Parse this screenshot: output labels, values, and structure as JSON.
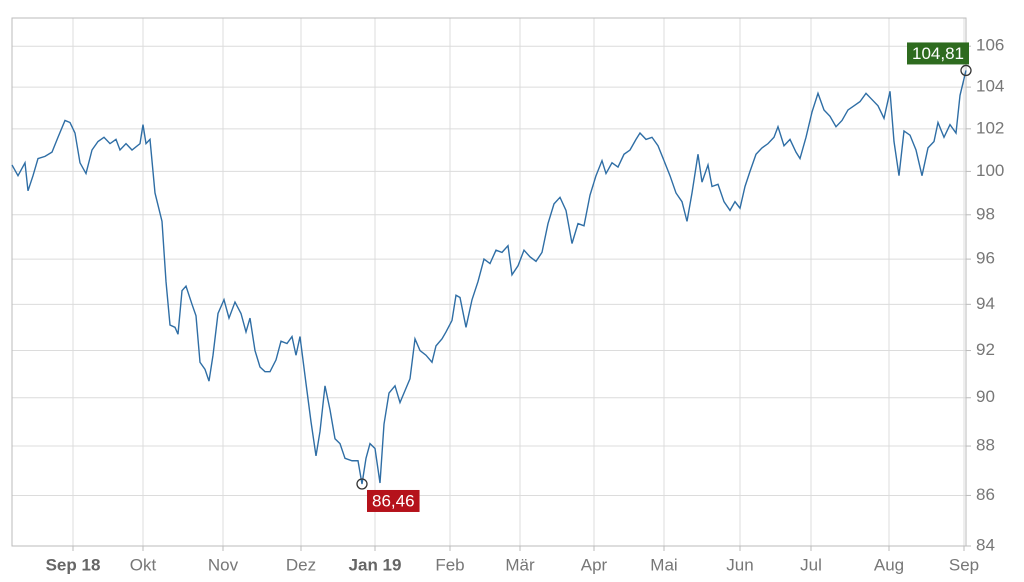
{
  "chart_data": {
    "type": "line",
    "color": "#2f6ea5",
    "log_y": true,
    "grid": true,
    "xlim": [
      -61,
      893
    ],
    "ylim": [
      84,
      107.4
    ],
    "xticks": [
      {
        "value": 0,
        "label": "Sep 18",
        "bold": true
      },
      {
        "value": 70,
        "label": "Okt"
      },
      {
        "value": 150,
        "label": "Nov"
      },
      {
        "value": 228,
        "label": "Dez"
      },
      {
        "value": 302,
        "label": "Jan 19",
        "bold": true
      },
      {
        "value": 377,
        "label": "Feb"
      },
      {
        "value": 447,
        "label": "Mär"
      },
      {
        "value": 521,
        "label": "Apr"
      },
      {
        "value": 591,
        "label": "Mai"
      },
      {
        "value": 667,
        "label": "Jun"
      },
      {
        "value": 738,
        "label": "Jul"
      },
      {
        "value": 816,
        "label": "Aug"
      },
      {
        "value": 891,
        "label": "Sep"
      }
    ],
    "yticks": [
      84,
      86,
      88,
      90,
      92,
      94,
      96,
      98,
      100,
      102,
      104,
      106
    ],
    "x": [
      -61,
      -55,
      -48,
      -45,
      -40,
      -35,
      -28,
      -21,
      -15,
      -8,
      -3,
      2,
      7,
      13,
      19,
      25,
      31,
      37,
      43,
      47,
      53,
      59,
      67,
      70,
      73,
      77,
      82,
      89,
      93,
      97,
      102,
      105,
      109,
      113,
      119,
      123,
      127,
      132,
      136,
      140,
      145,
      151,
      156,
      162,
      168,
      173,
      177,
      182,
      187,
      192,
      197,
      203,
      208,
      214,
      219,
      223,
      227,
      233,
      238,
      243,
      247,
      252,
      257,
      262,
      267,
      272,
      279,
      285,
      289,
      293,
      297,
      302,
      307,
      311,
      316,
      322,
      327,
      332,
      337,
      342,
      347,
      353,
      359,
      363,
      369,
      373,
      379,
      383,
      387,
      393,
      399,
      405,
      411,
      417,
      423,
      429,
      435,
      439,
      445,
      451,
      457,
      463,
      469,
      475,
      481,
      487,
      493,
      499,
      505,
      511,
      517,
      523,
      529,
      533,
      539,
      545,
      551,
      557,
      563,
      567,
      573,
      579,
      585,
      591,
      597,
      603,
      609,
      614,
      619,
      625,
      629,
      635,
      639,
      645,
      651,
      657,
      662,
      667,
      672,
      677,
      683,
      689,
      695,
      701,
      705,
      711,
      717,
      723,
      727,
      733,
      739,
      745,
      751,
      757,
      763,
      769,
      775,
      781,
      787,
      793,
      799,
      805,
      811,
      817,
      821,
      826,
      831,
      837,
      843,
      849,
      855,
      861,
      865,
      871,
      877,
      883,
      887,
      893
    ],
    "values": [
      100.3,
      99.8,
      100.4,
      99.1,
      99.8,
      100.6,
      100.7,
      100.9,
      101.6,
      102.4,
      102.3,
      101.8,
      100.4,
      99.9,
      101.0,
      101.4,
      101.6,
      101.3,
      101.5,
      101.0,
      101.3,
      101.0,
      101.3,
      102.2,
      101.3,
      101.5,
      99.0,
      97.7,
      95.0,
      93.1,
      93.0,
      92.7,
      94.6,
      94.8,
      94.0,
      93.5,
      91.5,
      91.2,
      90.7,
      91.8,
      93.6,
      94.2,
      93.4,
      94.1,
      93.6,
      92.8,
      93.4,
      92.0,
      91.3,
      91.1,
      91.1,
      91.6,
      92.4,
      92.3,
      92.6,
      91.8,
      92.6,
      90.6,
      89.0,
      87.6,
      88.6,
      90.5,
      89.5,
      88.3,
      88.1,
      87.5,
      87.4,
      87.4,
      86.46,
      87.5,
      88.1,
      87.9,
      86.5,
      88.9,
      90.2,
      90.5,
      89.8,
      90.3,
      90.8,
      92.5,
      92.0,
      91.8,
      91.5,
      92.2,
      92.5,
      92.8,
      93.3,
      94.4,
      94.3,
      93.0,
      94.2,
      95.0,
      96.0,
      95.8,
      96.4,
      96.3,
      96.6,
      95.3,
      95.7,
      96.4,
      96.1,
      95.9,
      96.3,
      97.6,
      98.5,
      98.8,
      98.2,
      96.7,
      97.6,
      97.5,
      98.9,
      99.8,
      100.5,
      99.9,
      100.4,
      100.2,
      100.8,
      101.0,
      101.5,
      101.8,
      101.5,
      101.6,
      101.2,
      100.5,
      99.8,
      99.0,
      98.6,
      97.7,
      99.0,
      100.8,
      99.5,
      100.3,
      99.3,
      99.4,
      98.6,
      98.2,
      98.6,
      98.3,
      99.3,
      100.0,
      100.8,
      101.1,
      101.3,
      101.6,
      102.1,
      101.2,
      101.5,
      100.9,
      100.6,
      101.6,
      102.8,
      103.7,
      102.9,
      102.6,
      102.1,
      102.4,
      102.9,
      103.1,
      103.3,
      103.7,
      103.4,
      103.1,
      102.5,
      103.8,
      101.4,
      99.8,
      101.9,
      101.7,
      101.0,
      99.8,
      101.1,
      101.4,
      102.3,
      101.6,
      102.2,
      101.8,
      103.6,
      104.81
    ],
    "annotations": [
      {
        "x": 289,
        "y": 86.46,
        "label": "86,46",
        "color": "#b5121b",
        "position": "below-right"
      },
      {
        "x": 893,
        "y": 104.81,
        "label": "104,81",
        "color": "#2e6b1f",
        "position": "above-left"
      }
    ]
  }
}
